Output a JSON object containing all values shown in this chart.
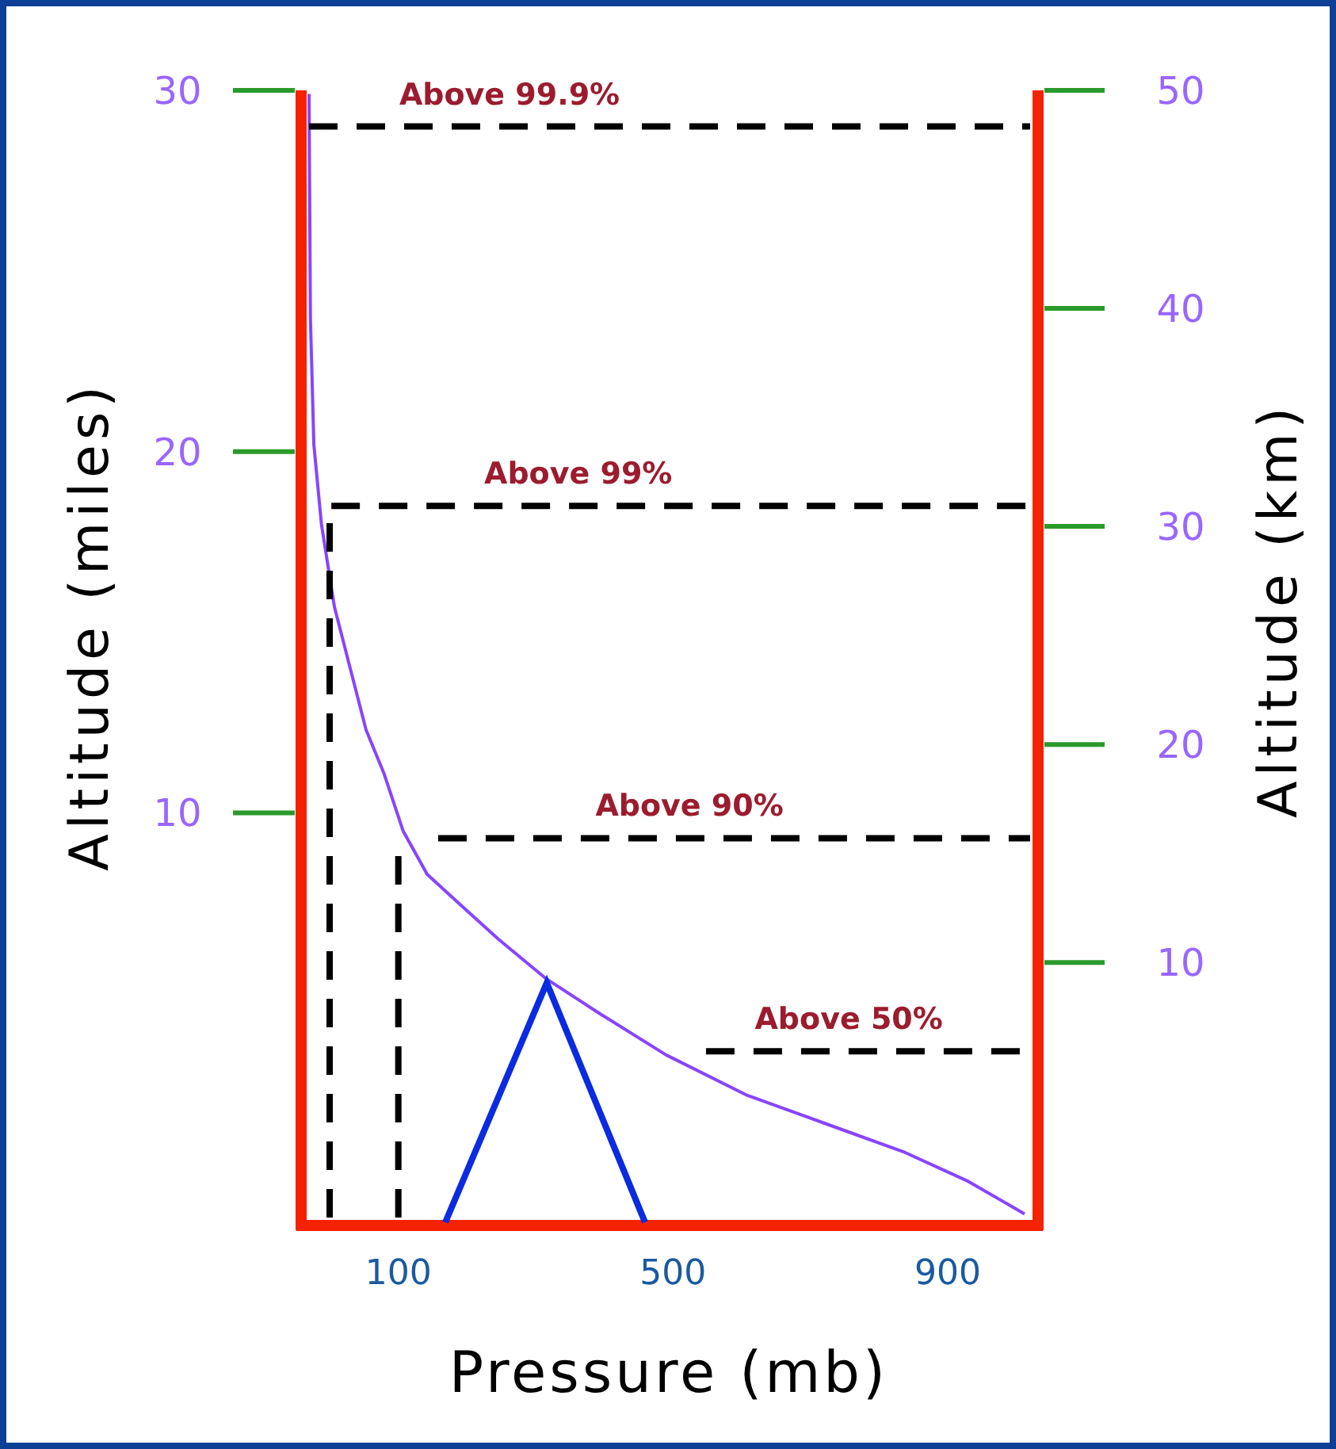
{
  "chart_data": {
    "type": "line",
    "xlabel": "Pressure (mb)",
    "ylabel": "Altitude (miles)",
    "y2label": "Altitude (km)",
    "xlim": [
      -30,
      1020
    ],
    "xticks": [
      100,
      500,
      900
    ],
    "ylim": [
      -1.2,
      30
    ],
    "yticks": [
      10,
      20,
      30
    ],
    "y2lim": [
      -1.7,
      50
    ],
    "y2ticks": [
      10,
      20,
      30,
      40,
      50
    ],
    "grid": false,
    "marker": "none",
    "series": [
      {
        "color": "#8844ff",
        "line_style": "solid",
        "x": [
          -30,
          -28,
          -23,
          -12,
          7,
          30,
          53,
          79,
          107,
          142,
          188,
          246,
          316,
          397,
          490,
          606,
          722,
          838,
          930,
          1012
        ],
        "values": [
          29.9,
          23.7,
          20.2,
          18.0,
          15.7,
          14.0,
          12.3,
          11.1,
          9.5,
          8.3,
          7.5,
          6.5,
          5.4,
          4.4,
          3.3,
          2.2,
          1.4,
          0.6,
          -0.2,
          -1.1
        ]
      },
      {
        "color": "#000000",
        "line_style": "dashed",
        "x": [
          -30,
          1020
        ],
        "values": [
          29.0,
          29.0
        ]
      },
      {
        "color": "#000000",
        "line_style": "dashed",
        "x": [
          0,
          0,
          1020
        ],
        "values": [
          -1.2,
          18.5,
          18.5
        ]
      },
      {
        "color": "#000000",
        "line_style": "dashed",
        "x": [
          100,
          100
        ],
        "values": [
          -1.2,
          9.1
        ]
      },
      {
        "color": "#000000",
        "line_style": "dashed",
        "x": [
          158,
          1020
        ],
        "values": [
          9.3,
          9.3
        ]
      },
      {
        "color": "#000000",
        "line_style": "dashed",
        "x": [
          548,
          1020
        ],
        "values": [
          3.4,
          3.4
        ]
      }
    ],
    "annotations": [
      {
        "text": "Above 99.9%",
        "x": 262,
        "y": 29.0
      },
      {
        "text": "Above 99%",
        "x": 362,
        "y": 18.5
      },
      {
        "text": "Above 90%",
        "x": 524,
        "y": 9.3
      },
      {
        "text": "Above 50%",
        "x": 756,
        "y": 3.4
      }
    ]
  }
}
